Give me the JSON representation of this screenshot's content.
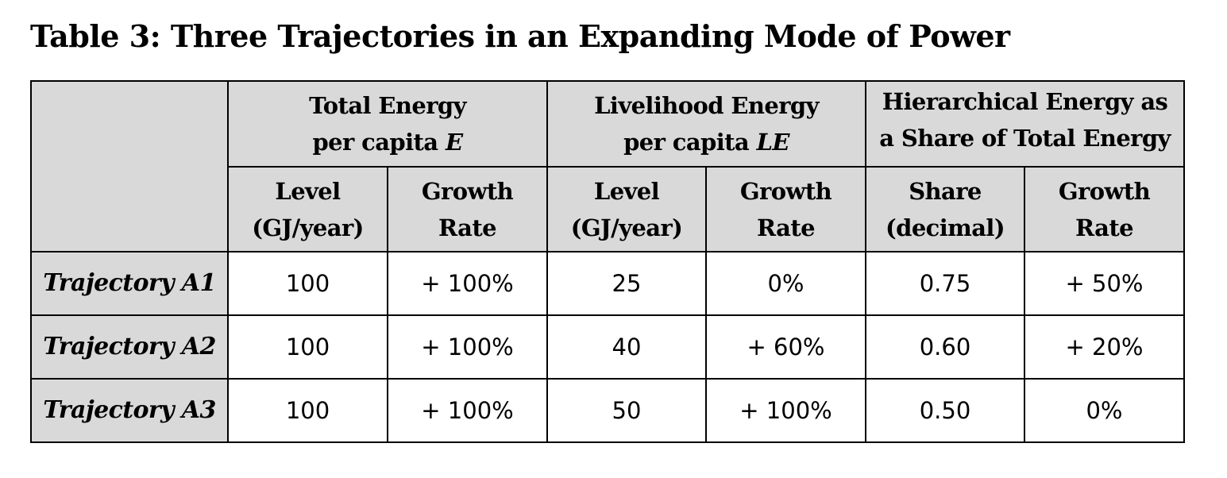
{
  "title": "Table 3: Three Trajectories in an Expanding Mode of Power",
  "table": {
    "groups": [
      {
        "line1": "Total Energy",
        "line2_text": "per capita ",
        "line2_symbol": "E"
      },
      {
        "line1": "Livelihood Energy",
        "line2_text": "per capita ",
        "line2_symbol": "LE"
      },
      {
        "line1": "Hierarchical Energy as",
        "line2_text": "a Share of Total Energy",
        "line2_symbol": ""
      }
    ],
    "subheaders": [
      {
        "line1": "Level",
        "line2": "(GJ/year)"
      },
      {
        "line1": "Growth",
        "line2": "Rate"
      },
      {
        "line1": "Level",
        "line2": "(GJ/year)"
      },
      {
        "line1": "Growth",
        "line2": "Rate"
      },
      {
        "line1": "Share",
        "line2": "(decimal)"
      },
      {
        "line1": "Growth",
        "line2": "Rate"
      }
    ],
    "rows": [
      {
        "label": "Trajectory A1",
        "cells": [
          "100",
          "+ 100%",
          "25",
          "0%",
          "0.75",
          "+ 50%"
        ]
      },
      {
        "label": "Trajectory A2",
        "cells": [
          "100",
          "+ 100%",
          "40",
          "+ 60%",
          "0.60",
          "+ 20%"
        ]
      },
      {
        "label": "Trajectory A3",
        "cells": [
          "100",
          "+ 100%",
          "50",
          "+ 100%",
          "0.50",
          "0%"
        ]
      }
    ]
  }
}
